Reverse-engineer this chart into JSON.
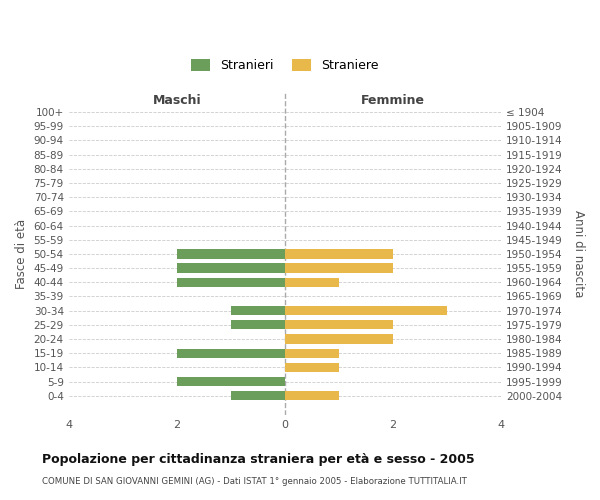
{
  "age_groups": [
    "100+",
    "95-99",
    "90-94",
    "85-89",
    "80-84",
    "75-79",
    "70-74",
    "65-69",
    "60-64",
    "55-59",
    "50-54",
    "45-49",
    "40-44",
    "35-39",
    "30-34",
    "25-29",
    "20-24",
    "15-19",
    "10-14",
    "5-9",
    "0-4"
  ],
  "birth_years": [
    "≤ 1904",
    "1905-1909",
    "1910-1914",
    "1915-1919",
    "1920-1924",
    "1925-1929",
    "1930-1934",
    "1935-1939",
    "1940-1944",
    "1945-1949",
    "1950-1954",
    "1955-1959",
    "1960-1964",
    "1965-1969",
    "1970-1974",
    "1975-1979",
    "1980-1984",
    "1985-1989",
    "1990-1994",
    "1995-1999",
    "2000-2004"
  ],
  "maschi": [
    0,
    0,
    0,
    0,
    0,
    0,
    0,
    0,
    0,
    0,
    2,
    2,
    2,
    0,
    1,
    1,
    0,
    2,
    0,
    2,
    1
  ],
  "femmine": [
    0,
    0,
    0,
    0,
    0,
    0,
    0,
    0,
    0,
    0,
    2,
    2,
    1,
    0,
    3,
    2,
    2,
    1,
    1,
    0,
    1
  ],
  "male_color": "#6a9e5a",
  "female_color": "#e8b84b",
  "xlim": 4,
  "title": "Popolazione per cittadinanza straniera per età e sesso - 2005",
  "subtitle": "COMUNE DI SAN GIOVANNI GEMINI (AG) - Dati ISTAT 1° gennaio 2005 - Elaborazione TUTTITALIA.IT",
  "ylabel_left": "Fasce di età",
  "ylabel_right": "Anni di nascita",
  "header_left": "Maschi",
  "header_right": "Femmine",
  "legend_stranieri": "Stranieri",
  "legend_straniere": "Straniere",
  "bg_color": "#ffffff",
  "grid_color": "#cccccc",
  "bar_height": 0.65
}
